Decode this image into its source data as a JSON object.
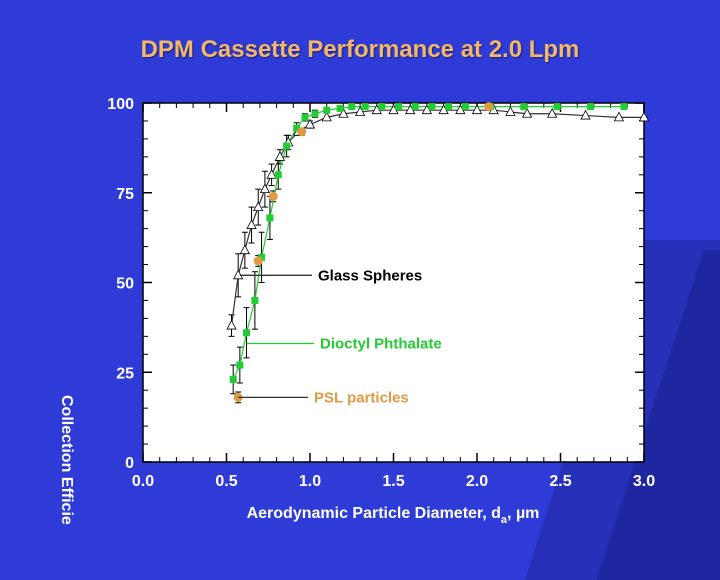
{
  "slide": {
    "title": "DPM Cassette Performance at 2.0 Lpm"
  },
  "colors": {
    "background": "#2f3bd6",
    "title": "#f3b866",
    "glass": "#ffffff",
    "dop": "#22cc33",
    "psl": "#e09a40"
  },
  "chart_data": {
    "type": "scatter",
    "title": "DPM Cassette Performance at 2.0 Lpm",
    "xlabel_main": "Aerodynamic Particle Diameter, d",
    "xlabel_sub": "a",
    "xlabel_unit": ", µm",
    "ylabel": "Collection Efficie",
    "xlim": [
      0,
      3.0
    ],
    "ylim": [
      0,
      100
    ],
    "xticks": [
      "0.0",
      "0.5",
      "1.0",
      "1.5",
      "2.0",
      "2.5",
      "3.0"
    ],
    "xtick_values": [
      0,
      0.5,
      1.0,
      1.5,
      2.0,
      2.5,
      3.0
    ],
    "yticks": [
      "0",
      "25",
      "50",
      "75",
      "100"
    ],
    "ytick_values": [
      0,
      25,
      50,
      75,
      100
    ],
    "grid": false,
    "series": [
      {
        "name": "Glass Spheres",
        "marker": "triangle",
        "color": "#ffffff",
        "x": [
          0.53,
          0.57,
          0.61,
          0.65,
          0.69,
          0.73,
          0.77,
          0.82,
          0.87,
          0.93,
          1.0,
          1.1,
          1.2,
          1.3,
          1.4,
          1.5,
          1.6,
          1.7,
          1.8,
          1.9,
          2.0,
          2.1,
          2.2,
          2.3,
          2.45,
          2.65,
          2.85,
          3.0
        ],
        "y": [
          38,
          52,
          59,
          66,
          71,
          76,
          80,
          85,
          89,
          92,
          94,
          96,
          97,
          97.5,
          98,
          98,
          98,
          98,
          98,
          98,
          98,
          98,
          97.5,
          97,
          97,
          96.5,
          96,
          96
        ],
        "err": [
          3,
          6,
          5,
          5,
          5,
          5,
          3,
          2,
          2,
          1,
          1,
          0.5,
          0.5,
          0.5,
          0.5,
          0.5,
          0.5,
          0.5,
          0.5,
          0.5,
          0.5,
          0.5,
          0.5,
          0.5,
          0.5,
          0.5,
          0.5,
          0.5
        ]
      },
      {
        "name": "Dioctyl Phthalate",
        "marker": "square",
        "color": "#22cc33",
        "x": [
          0.54,
          0.58,
          0.62,
          0.67,
          0.71,
          0.76,
          0.81,
          0.86,
          0.92,
          0.97,
          1.03,
          1.1,
          1.18,
          1.25,
          1.33,
          1.43,
          1.53,
          1.63,
          1.73,
          1.83,
          1.93,
          2.08,
          2.28,
          2.48,
          2.68,
          2.88
        ],
        "y": [
          23,
          27,
          36,
          45,
          57,
          68,
          80,
          88,
          93,
          96,
          97,
          98,
          98.5,
          99,
          99,
          99,
          99,
          99,
          99,
          99,
          99,
          99,
          99,
          99,
          99,
          99
        ],
        "err": [
          4,
          5,
          7,
          8,
          7,
          6,
          4,
          3,
          1.5,
          1,
          1,
          0.5,
          0.5,
          0.5,
          0.5,
          0.5,
          0.5,
          0.5,
          0.5,
          0.5,
          0.5,
          0.5,
          0.5,
          0.5,
          0.5,
          0.5
        ]
      },
      {
        "name": "PSL particles",
        "marker": "circle",
        "color": "#e09a40",
        "x": [
          0.57,
          0.69,
          0.78,
          0.95,
          2.07
        ],
        "y": [
          18,
          56,
          74,
          92,
          99
        ],
        "err": [
          1.5,
          1.5,
          1.5,
          1,
          0.5
        ]
      }
    ],
    "annotations": [
      {
        "label": "Glass Spheres",
        "series": 0
      },
      {
        "label": "Dioctyl Phthalate",
        "series": 1
      },
      {
        "label": "PSL particles",
        "series": 2
      }
    ]
  }
}
